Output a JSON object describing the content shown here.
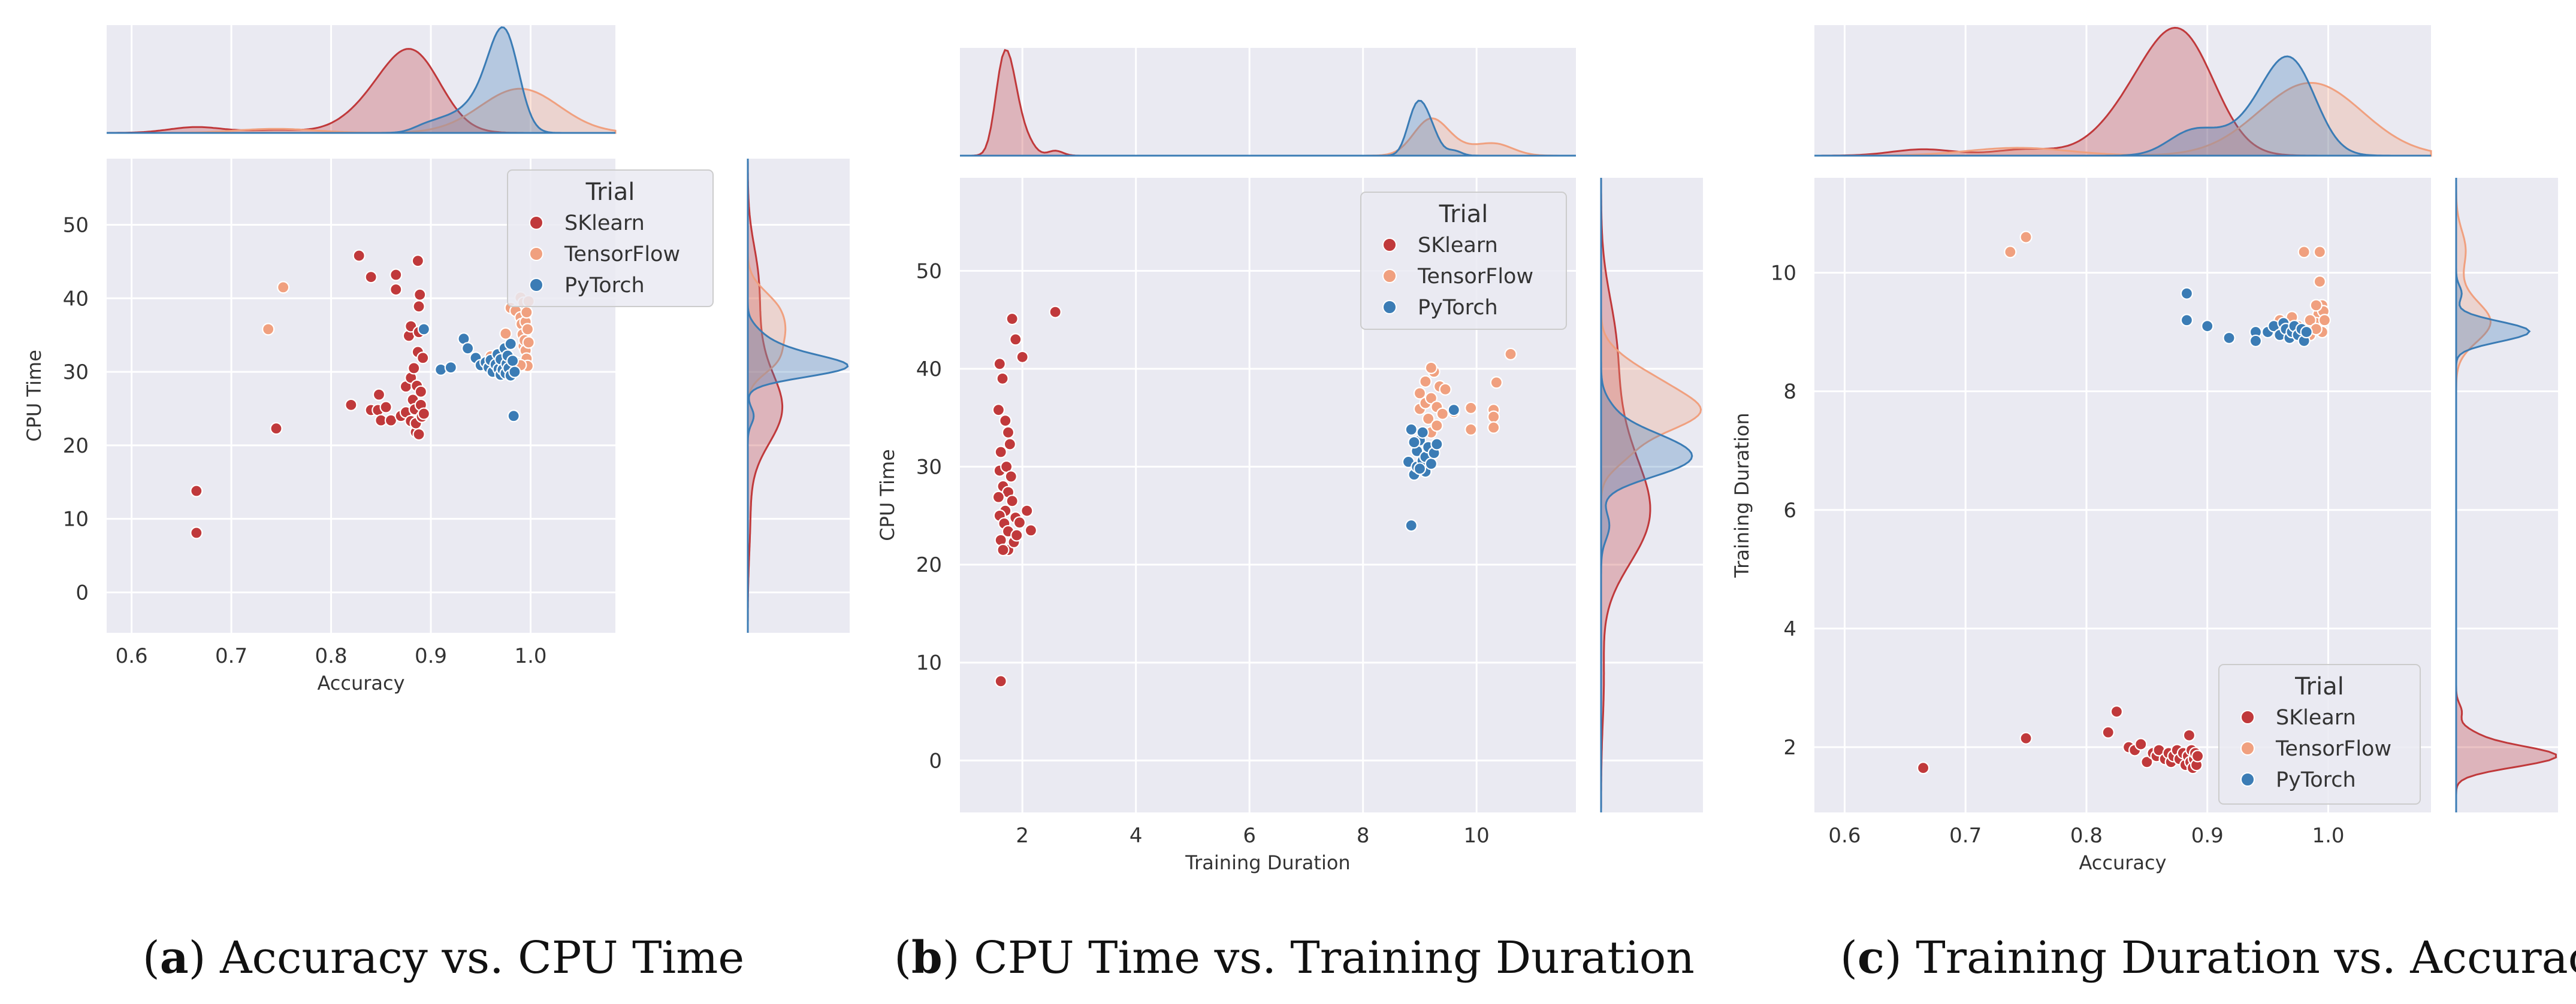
{
  "colors": {
    "SKlearn": "#c0393b",
    "TensorFlow": "#f0a07f",
    "PyTorch": "#3b7cb5",
    "panel_bg": "#eaeaf2",
    "grid": "#ffffff"
  },
  "chart_data": [
    {
      "type": "scatter",
      "caption": {
        "letter": "a",
        "text": " Accuracy vs. CPU Time"
      },
      "xlabel": "Accuracy",
      "ylabel": "CPU Time",
      "xlim": [
        0.575,
        1.085
      ],
      "ylim": [
        -5.5,
        59
      ],
      "xticks": [
        0.6,
        0.7,
        0.8,
        0.9,
        1.0
      ],
      "xticklabels": [
        "0.6",
        "0.7",
        "0.8",
        "0.9",
        "1.0"
      ],
      "yticks": [
        0,
        10,
        20,
        30,
        40,
        50
      ],
      "yticklabels": [
        "0",
        "10",
        "20",
        "30",
        "40",
        "50"
      ],
      "legend": {
        "title": "Trial",
        "position": "top-right",
        "entries": [
          "SKlearn",
          "TensorFlow",
          "PyTorch"
        ]
      },
      "series": [
        {
          "name": "SKlearn",
          "points": [
            [
              0.665,
              13.8
            ],
            [
              0.665,
              8.1
            ],
            [
              0.745,
              22.3
            ],
            [
              0.82,
              25.5
            ],
            [
              0.828,
              45.8
            ],
            [
              0.84,
              42.9
            ],
            [
              0.84,
              24.8
            ],
            [
              0.847,
              24.8
            ],
            [
              0.848,
              26.9
            ],
            [
              0.85,
              23.4
            ],
            [
              0.855,
              25.2
            ],
            [
              0.86,
              23.4
            ],
            [
              0.865,
              43.2
            ],
            [
              0.865,
              41.2
            ],
            [
              0.87,
              24.0
            ],
            [
              0.875,
              24.5
            ],
            [
              0.875,
              28.0
            ],
            [
              0.878,
              34.9
            ],
            [
              0.88,
              23.3
            ],
            [
              0.88,
              29.2
            ],
            [
              0.88,
              36.2
            ],
            [
              0.882,
              26.2
            ],
            [
              0.883,
              30.5
            ],
            [
              0.884,
              24.9
            ],
            [
              0.885,
              21.8
            ],
            [
              0.885,
              23.0
            ],
            [
              0.886,
              28.1
            ],
            [
              0.887,
              45.1
            ],
            [
              0.887,
              32.7
            ],
            [
              0.888,
              35.4
            ],
            [
              0.888,
              38.9
            ],
            [
              0.888,
              21.5
            ],
            [
              0.889,
              40.5
            ],
            [
              0.89,
              27.3
            ],
            [
              0.89,
              25.5
            ],
            [
              0.891,
              23.9
            ],
            [
              0.892,
              31.9
            ],
            [
              0.893,
              24.3
            ]
          ]
        },
        {
          "name": "TensorFlow",
          "points": [
            [
              0.737,
              35.8
            ],
            [
              0.752,
              41.5
            ],
            [
              0.98,
              38.7
            ],
            [
              0.985,
              38.3
            ],
            [
              0.99,
              40.1
            ],
            [
              0.99,
              37.4
            ],
            [
              0.991,
              36.5
            ],
            [
              0.992,
              35.1
            ],
            [
              0.993,
              33.5
            ],
            [
              0.993,
              39.4
            ],
            [
              0.994,
              34.3
            ],
            [
              0.995,
              32.9
            ],
            [
              0.995,
              36.8
            ],
            [
              0.996,
              31.8
            ],
            [
              0.996,
              38.1
            ],
            [
              0.997,
              35.8
            ],
            [
              0.997,
              30.8
            ],
            [
              0.998,
              34.0
            ],
            [
              0.998,
              39.6
            ],
            [
              0.975,
              35.2
            ],
            [
              0.985,
              31.3
            ],
            [
              0.99,
              30.9
            ],
            [
              0.963,
              30.8
            ],
            [
              0.96,
              32.1
            ]
          ]
        },
        {
          "name": "PyTorch",
          "points": [
            [
              0.893,
              35.8
            ],
            [
              0.91,
              30.3
            ],
            [
              0.92,
              30.6
            ],
            [
              0.933,
              34.5
            ],
            [
              0.937,
              33.2
            ],
            [
              0.945,
              31.9
            ],
            [
              0.95,
              30.9
            ],
            [
              0.955,
              31.3
            ],
            [
              0.958,
              30.6
            ],
            [
              0.96,
              31.6
            ],
            [
              0.962,
              30.0
            ],
            [
              0.965,
              31.0
            ],
            [
              0.967,
              32.4
            ],
            [
              0.968,
              30.4
            ],
            [
              0.97,
              31.7
            ],
            [
              0.97,
              29.6
            ],
            [
              0.972,
              30.3
            ],
            [
              0.974,
              33.2
            ],
            [
              0.975,
              29.8
            ],
            [
              0.976,
              31.1
            ],
            [
              0.977,
              32.2
            ],
            [
              0.978,
              30.5
            ],
            [
              0.98,
              29.5
            ],
            [
              0.98,
              33.8
            ],
            [
              0.982,
              31.5
            ],
            [
              0.983,
              24.0
            ],
            [
              0.984,
              30.0
            ]
          ]
        }
      ]
    },
    {
      "type": "scatter",
      "caption": {
        "letter": "b",
        "text": " CPU Time vs. Training Duration"
      },
      "xlabel": "Training Duration",
      "ylabel": "CPU Time",
      "xlim": [
        0.9,
        11.75
      ],
      "ylim": [
        -5.3,
        59.5
      ],
      "xticks": [
        2,
        4,
        6,
        8,
        10
      ],
      "xticklabels": [
        "2",
        "4",
        "6",
        "8",
        "10"
      ],
      "yticks": [
        0,
        10,
        20,
        30,
        40,
        50
      ],
      "yticklabels": [
        "0",
        "10",
        "20",
        "30",
        "40",
        "50"
      ],
      "legend": {
        "title": "Trial",
        "position": "top-right",
        "entries": [
          "SKlearn",
          "TensorFlow",
          "PyTorch"
        ]
      },
      "series": [
        {
          "name": "SKlearn",
          "points": [
            [
              1.62,
              8.1
            ],
            [
              1.6,
              40.5
            ],
            [
              1.65,
              39.0
            ],
            [
              1.58,
              35.8
            ],
            [
              1.7,
              34.7
            ],
            [
              1.75,
              33.5
            ],
            [
              1.62,
              31.5
            ],
            [
              1.78,
              32.3
            ],
            [
              1.6,
              29.6
            ],
            [
              1.66,
              28.0
            ],
            [
              1.75,
              27.4
            ],
            [
              1.58,
              26.9
            ],
            [
              1.82,
              26.5
            ],
            [
              1.7,
              25.5
            ],
            [
              1.6,
              25.0
            ],
            [
              1.68,
              24.2
            ],
            [
              1.75,
              23.4
            ],
            [
              1.88,
              24.8
            ],
            [
              1.62,
              22.5
            ],
            [
              1.75,
              21.5
            ],
            [
              1.85,
              22.3
            ],
            [
              1.95,
              24.3
            ],
            [
              2.08,
              25.5
            ],
            [
              2.15,
              23.5
            ],
            [
              1.82,
              45.1
            ],
            [
              1.88,
              43.0
            ],
            [
              2.0,
              41.2
            ],
            [
              2.58,
              45.8
            ],
            [
              1.72,
              30.0
            ],
            [
              1.8,
              29.0
            ],
            [
              1.66,
              21.5
            ],
            [
              1.9,
              23.0
            ]
          ]
        },
        {
          "name": "TensorFlow",
          "points": [
            [
              9.0,
              35.9
            ],
            [
              9.0,
              37.5
            ],
            [
              9.1,
              38.7
            ],
            [
              9.1,
              36.5
            ],
            [
              9.15,
              34.9
            ],
            [
              9.2,
              37.0
            ],
            [
              9.2,
              33.5
            ],
            [
              9.25,
              39.7
            ],
            [
              9.25,
              32.0
            ],
            [
              9.3,
              36.1
            ],
            [
              9.3,
              34.2
            ],
            [
              9.35,
              38.2
            ],
            [
              9.4,
              35.4
            ],
            [
              9.45,
              37.9
            ],
            [
              9.6,
              35.6
            ],
            [
              9.9,
              36.0
            ],
            [
              9.9,
              33.8
            ],
            [
              10.3,
              35.8
            ],
            [
              10.3,
              35.1
            ],
            [
              10.3,
              34.0
            ],
            [
              10.35,
              38.6
            ],
            [
              10.6,
              41.5
            ],
            [
              9.2,
              40.1
            ],
            [
              9.05,
              31.3
            ],
            [
              9.1,
              30.8
            ]
          ]
        },
        {
          "name": "PyTorch",
          "points": [
            [
              8.85,
              24.0
            ],
            [
              8.85,
              33.8
            ],
            [
              8.8,
              30.5
            ],
            [
              8.9,
              29.2
            ],
            [
              8.95,
              31.6
            ],
            [
              8.95,
              30.0
            ],
            [
              9.0,
              32.7
            ],
            [
              9.05,
              30.6
            ],
            [
              9.1,
              31.0
            ],
            [
              9.1,
              29.5
            ],
            [
              9.15,
              32.0
            ],
            [
              9.2,
              30.3
            ],
            [
              9.25,
              31.4
            ],
            [
              9.3,
              32.3
            ],
            [
              9.05,
              33.5
            ],
            [
              9.6,
              35.8
            ],
            [
              8.9,
              32.5
            ],
            [
              9.0,
              29.8
            ]
          ]
        }
      ]
    },
    {
      "type": "scatter",
      "caption": {
        "letter": "c",
        "text": " Training Duration vs. Accuracy"
      },
      "xlabel": "Accuracy",
      "ylabel": "Training Duration",
      "xlim": [
        0.575,
        1.085
      ],
      "ylim": [
        0.9,
        11.6
      ],
      "xticks": [
        0.6,
        0.7,
        0.8,
        0.9,
        1.0
      ],
      "xticklabels": [
        "0.6",
        "0.7",
        "0.8",
        "0.9",
        "1.0"
      ],
      "yticks": [
        2,
        4,
        6,
        8,
        10
      ],
      "yticklabels": [
        "2",
        "4",
        "6",
        "8",
        "10"
      ],
      "legend": {
        "title": "Trial",
        "position": "bottom-right",
        "entries": [
          "SKlearn",
          "TensorFlow",
          "PyTorch"
        ]
      },
      "series": [
        {
          "name": "SKlearn",
          "points": [
            [
              0.665,
              1.65
            ],
            [
              0.75,
              2.15
            ],
            [
              0.818,
              2.25
            ],
            [
              0.825,
              2.6
            ],
            [
              0.835,
              2.0
            ],
            [
              0.84,
              1.95
            ],
            [
              0.845,
              2.05
            ],
            [
              0.85,
              1.75
            ],
            [
              0.855,
              1.9
            ],
            [
              0.858,
              1.85
            ],
            [
              0.86,
              1.95
            ],
            [
              0.865,
              1.8
            ],
            [
              0.868,
              1.9
            ],
            [
              0.87,
              1.75
            ],
            [
              0.872,
              1.85
            ],
            [
              0.875,
              1.95
            ],
            [
              0.877,
              1.8
            ],
            [
              0.88,
              1.9
            ],
            [
              0.882,
              1.7
            ],
            [
              0.884,
              1.85
            ],
            [
              0.885,
              2.2
            ],
            [
              0.886,
              1.75
            ],
            [
              0.887,
              1.95
            ],
            [
              0.888,
              1.65
            ],
            [
              0.889,
              1.8
            ],
            [
              0.89,
              1.9
            ],
            [
              0.891,
              1.7
            ],
            [
              0.892,
              1.85
            ]
          ]
        },
        {
          "name": "TensorFlow",
          "points": [
            [
              0.737,
              10.35
            ],
            [
              0.75,
              10.6
            ],
            [
              0.98,
              10.35
            ],
            [
              0.993,
              10.35
            ],
            [
              0.993,
              9.85
            ],
            [
              0.995,
              9.45
            ],
            [
              0.992,
              9.3
            ],
            [
              0.99,
              9.15
            ],
            [
              0.988,
              9.05
            ],
            [
              0.985,
              9.2
            ],
            [
              0.98,
              9.0
            ],
            [
              0.975,
              9.1
            ],
            [
              0.97,
              9.25
            ],
            [
              0.995,
              9.0
            ],
            [
              0.996,
              9.35
            ],
            [
              0.99,
              9.45
            ],
            [
              0.965,
              9.1
            ],
            [
              0.96,
              9.2
            ],
            [
              0.997,
              9.2
            ],
            [
              0.985,
              8.95
            ],
            [
              0.99,
              9.05
            ]
          ]
        },
        {
          "name": "PyTorch",
          "points": [
            [
              0.883,
              9.65
            ],
            [
              0.883,
              9.2
            ],
            [
              0.9,
              9.1
            ],
            [
              0.918,
              8.9
            ],
            [
              0.94,
              9.0
            ],
            [
              0.94,
              8.85
            ],
            [
              0.95,
              9.0
            ],
            [
              0.955,
              9.1
            ],
            [
              0.96,
              8.95
            ],
            [
              0.963,
              9.15
            ],
            [
              0.965,
              9.05
            ],
            [
              0.968,
              8.9
            ],
            [
              0.97,
              9.0
            ],
            [
              0.972,
              9.1
            ],
            [
              0.975,
              8.95
            ],
            [
              0.978,
              9.05
            ],
            [
              0.98,
              8.85
            ],
            [
              0.982,
              9.0
            ]
          ]
        }
      ]
    }
  ]
}
